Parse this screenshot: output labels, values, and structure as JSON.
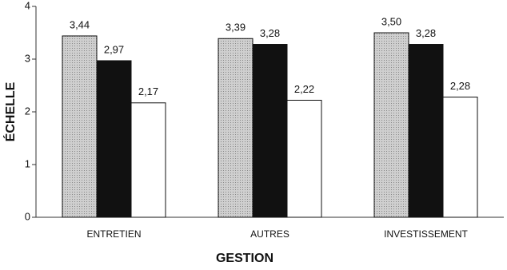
{
  "chart_data": {
    "type": "bar",
    "x_label": "GESTION",
    "y_label": "ÉCHELLE",
    "categories": [
      "ENTRETIEN",
      "AUTRES",
      "INVESTISSEMENT"
    ],
    "series": [
      {
        "color": "#c4c4c4",
        "values": [
          3.44,
          3.39,
          3.5
        ],
        "value_labels": [
          "3,44",
          "3,39",
          "3,50"
        ]
      },
      {
        "color": "#111111",
        "values": [
          2.97,
          3.28,
          3.28
        ],
        "value_labels": [
          "2,97",
          "3,28",
          "3,28"
        ]
      },
      {
        "color": "#ffffff",
        "values": [
          2.17,
          2.22,
          2.28
        ],
        "value_labels": [
          "2,17",
          "2,22",
          "2,28"
        ]
      }
    ],
    "ylim": [
      0,
      4
    ],
    "yticks": [
      0,
      1,
      2,
      3,
      4
    ]
  }
}
